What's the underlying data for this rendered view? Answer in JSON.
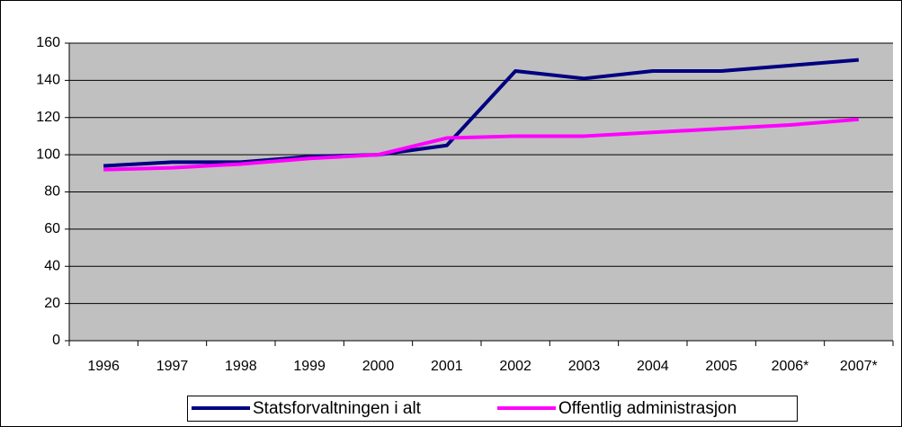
{
  "chart_data": {
    "type": "line",
    "categories": [
      "1996",
      "1997",
      "1998",
      "1999",
      "2000",
      "2001",
      "2002",
      "2003",
      "2004",
      "2005",
      "2006*",
      "2007*"
    ],
    "series": [
      {
        "name": "Statsforvaltningen i alt",
        "color": "#000080",
        "values": [
          94,
          96,
          96,
          99,
          100,
          105,
          145,
          141,
          145,
          145,
          148,
          151
        ]
      },
      {
        "name": "Offentlig administrasjon",
        "color": "#ff00ff",
        "values": [
          92,
          93,
          95,
          98,
          100,
          109,
          110,
          110,
          112,
          114,
          116,
          119
        ]
      }
    ],
    "ylim": [
      0,
      160
    ],
    "yticks": [
      0,
      20,
      40,
      60,
      80,
      100,
      120,
      140,
      160
    ],
    "grid": true,
    "legend": "bottom"
  }
}
